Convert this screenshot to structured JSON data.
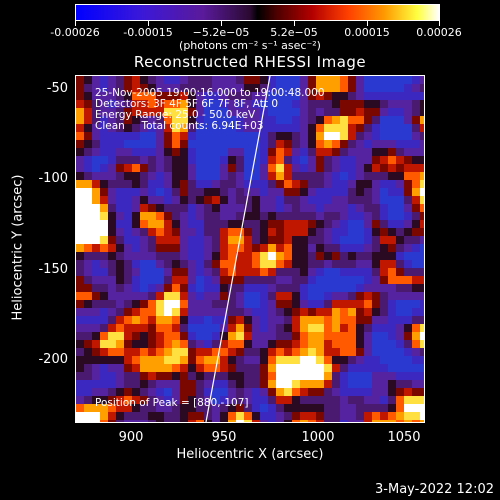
{
  "colorbar": {
    "ticks": [
      "-0.00026",
      "-0.00015",
      "−5.2e−05",
      "5.2e−05",
      "0.00015",
      "0.00026"
    ],
    "units": "(photons cm⁻² s⁻¹ asec⁻²)"
  },
  "title": "Reconstructed RHESSI Image",
  "info": {
    "time": "25-Nov-2005 19:00:16.000 to 19:00:48.000",
    "detectors": "Detectors: 3F 4F 5F 6F 7F 8F, Att 0",
    "energy": "Energy Range: 25.0 - 50.0 keV",
    "clean": "Clean     Total counts: 6.94E+03",
    "peak": "Position of Peak = [880,-107]"
  },
  "axes": {
    "xlabel": "Heliocentric X (arcsec)",
    "ylabel": "Heliocentric Y (arcsec)",
    "xticks": [
      "900",
      "950",
      "1000",
      "1050"
    ],
    "yticks": [
      "-50",
      "-100",
      "-150",
      "-200"
    ]
  },
  "timestamp": "3-May-2022 12:02"
}
